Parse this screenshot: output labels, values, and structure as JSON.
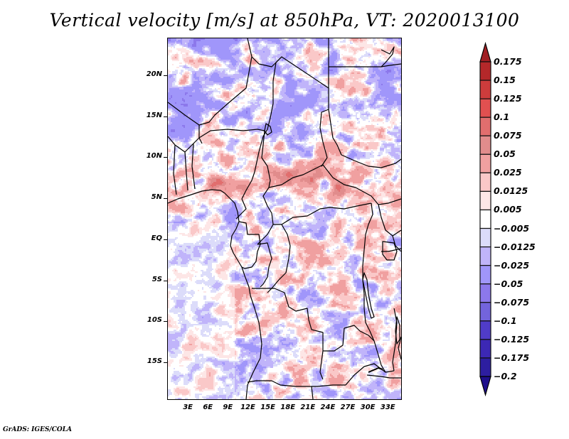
{
  "chart_data": {
    "type": "heatmap",
    "title": "Vertical velocity [m/s] at 850hPa, VT: 2020013100",
    "variable": "Vertical velocity",
    "units": "m/s",
    "level": "850hPa",
    "valid_time": "2020013100",
    "x_axis": {
      "range": [
        0,
        35
      ],
      "tick_labels": [
        "3E",
        "6E",
        "9E",
        "12E",
        "15E",
        "18E",
        "21E",
        "24E",
        "27E",
        "30E",
        "33E"
      ],
      "tick_values": [
        3,
        6,
        9,
        12,
        15,
        18,
        21,
        24,
        27,
        30,
        33
      ]
    },
    "y_axis": {
      "range": [
        -19.5,
        24.5
      ],
      "tick_labels": [
        "20N",
        "15N",
        "10N",
        "5N",
        "EQ",
        "5S",
        "10S",
        "15S"
      ],
      "tick_values": [
        20,
        15,
        10,
        5,
        0,
        -5,
        -10,
        -15
      ]
    },
    "colorbar": {
      "orientation": "vertical",
      "placement": "right",
      "levels": [
        0.175,
        0.15,
        0.125,
        0.1,
        0.075,
        0.05,
        0.025,
        0.0125,
        0.005,
        -0.005,
        -0.0125,
        -0.025,
        -0.05,
        -0.075,
        -0.1,
        -0.125,
        -0.175,
        -0.2
      ],
      "level_labels": [
        "0.175",
        "0.15",
        "0.125",
        "0.1",
        "0.075",
        "0.05",
        "0.025",
        "0.0125",
        "0.005",
        "−0.005",
        "−0.0125",
        "−0.025",
        "−0.05",
        "−0.075",
        "−0.1",
        "−0.125",
        "−0.175",
        "−0.2"
      ],
      "colors": [
        "#a01e23",
        "#b4282a",
        "#cd3c3c",
        "#e15050",
        "#e16e6e",
        "#e18c8c",
        "#f0a0a0",
        "#fac8c8",
        "#fde6e6",
        "#ffffff",
        "#dcdcfa",
        "#c0b4fa",
        "#a096fa",
        "#8c78eb",
        "#7364dc",
        "#503cc8",
        "#3c28b4",
        "#2d1ea0",
        "#1e0f8c"
      ],
      "extend": "both"
    },
    "map_features": [
      "coastlines",
      "country borders",
      "lakes"
    ],
    "grid": false
  },
  "footer": {
    "credit": "GrADS: IGES/COLA"
  }
}
